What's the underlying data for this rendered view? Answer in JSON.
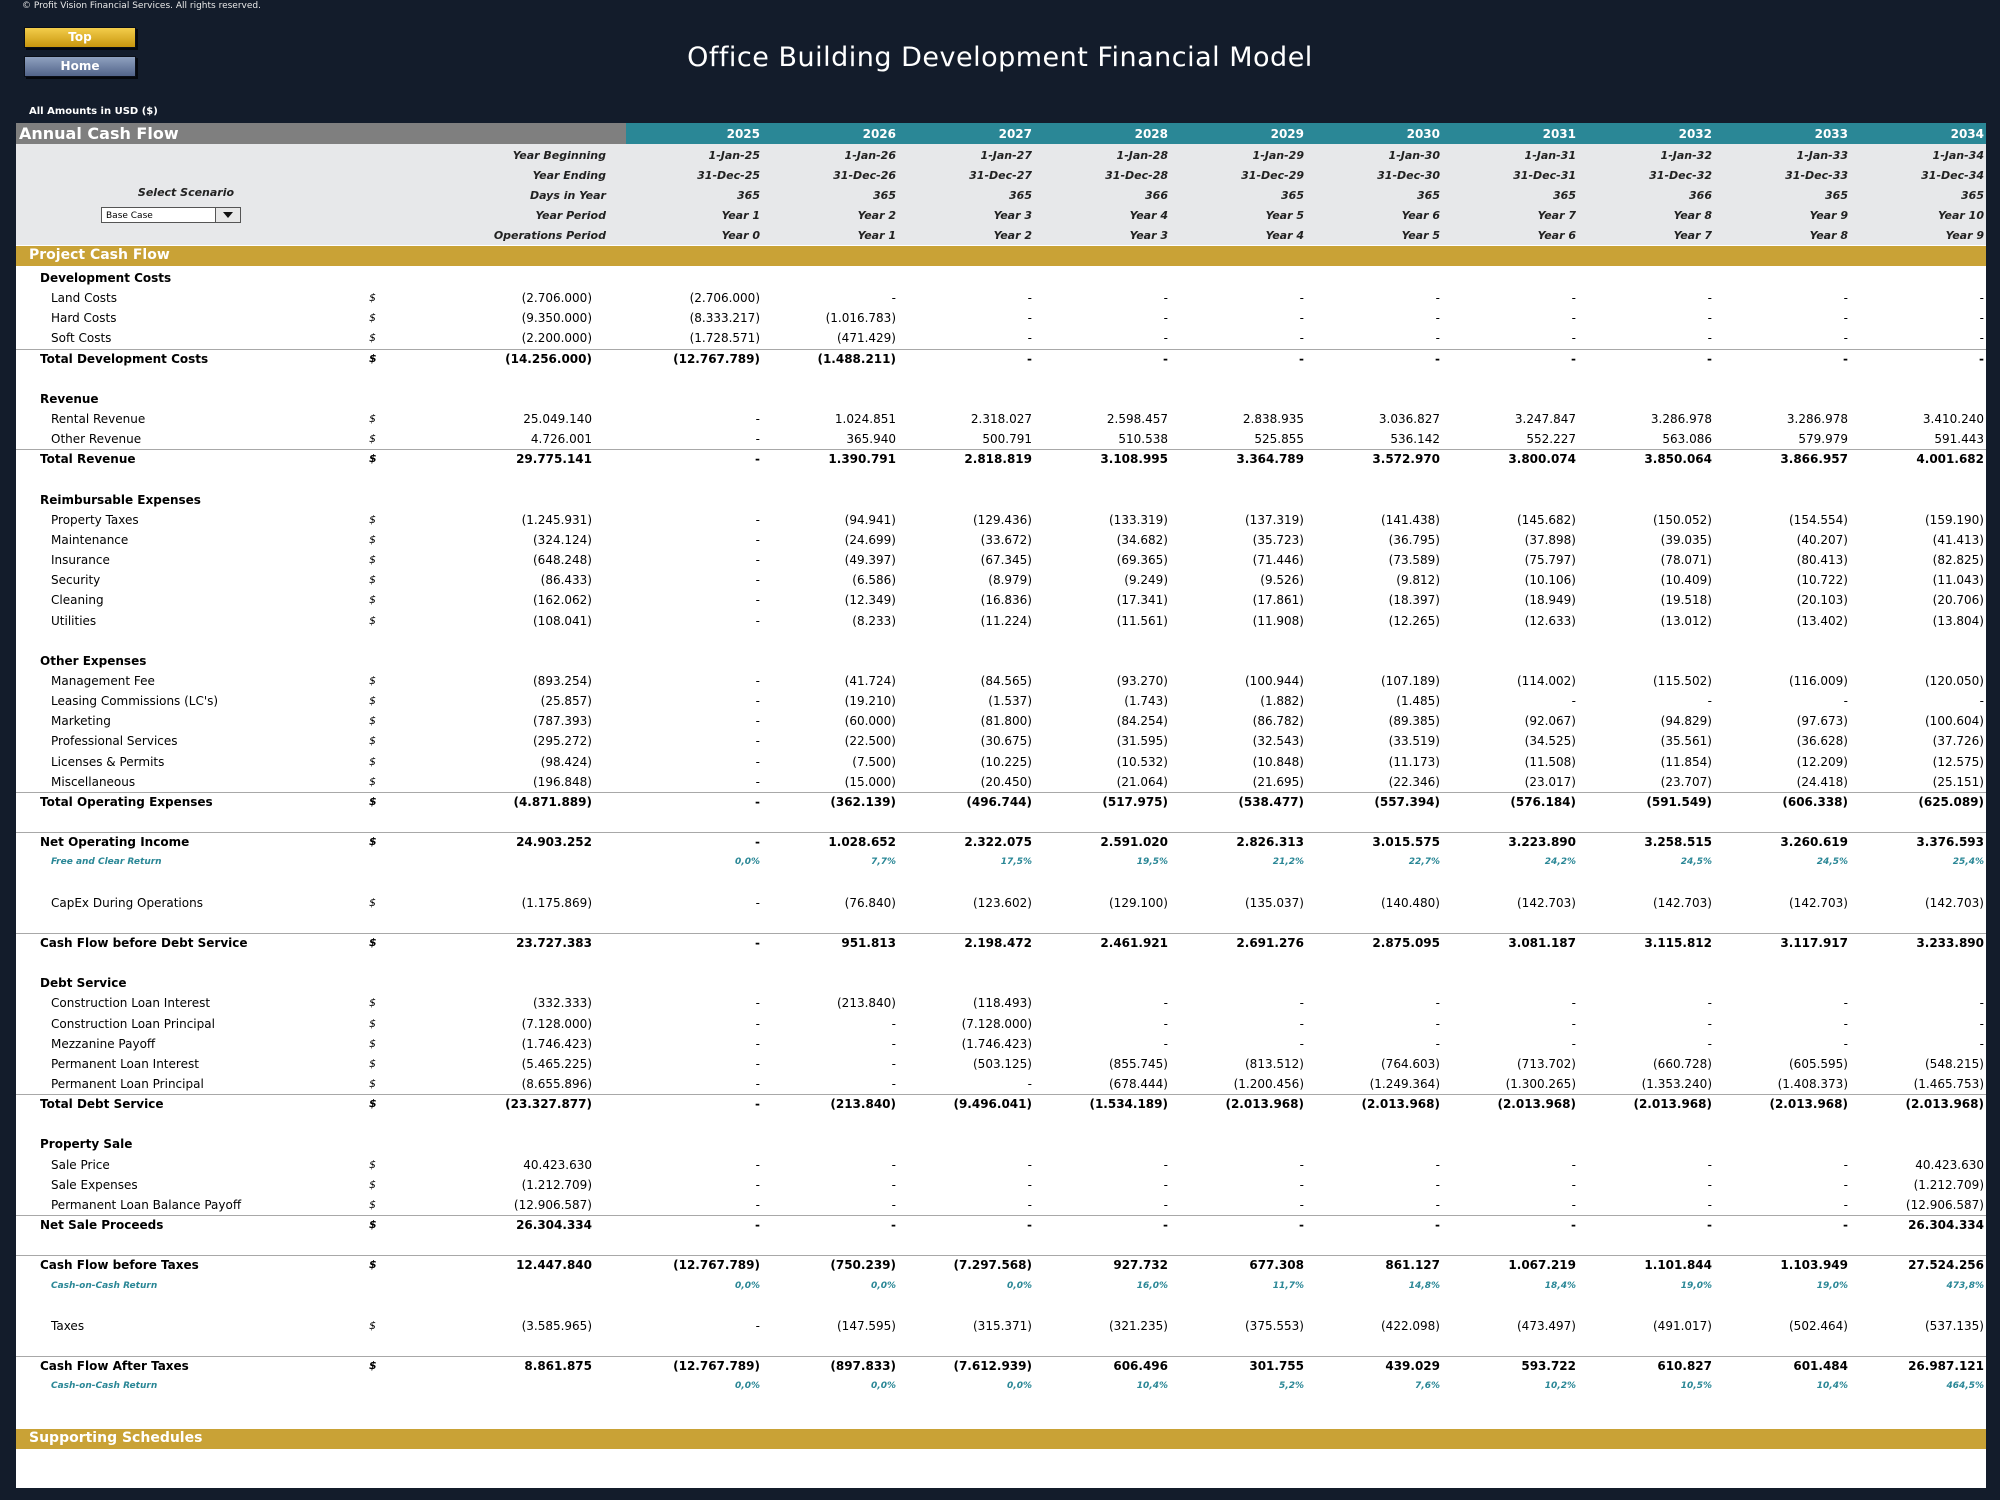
{
  "copyright": "© Profit Vision Financial Services. All rights reserved.",
  "nav": {
    "top": "Top",
    "home": "Home"
  },
  "title": "Office Building Development Financial Model",
  "amounts": "All Amounts in  USD ($)",
  "sheet_title": "Annual Cash Flow",
  "years": [
    "2025",
    "2026",
    "2027",
    "2028",
    "2029",
    "2030",
    "2031",
    "2032",
    "2033",
    "2034"
  ],
  "info_rows": [
    {
      "label": "Year Beginning",
      "values": [
        "1-Jan-25",
        "1-Jan-26",
        "1-Jan-27",
        "1-Jan-28",
        "1-Jan-29",
        "1-Jan-30",
        "1-Jan-31",
        "1-Jan-32",
        "1-Jan-33",
        "1-Jan-34"
      ]
    },
    {
      "label": "Year Ending",
      "values": [
        "31-Dec-25",
        "31-Dec-26",
        "31-Dec-27",
        "31-Dec-28",
        "31-Dec-29",
        "31-Dec-30",
        "31-Dec-31",
        "31-Dec-32",
        "31-Dec-33",
        "31-Dec-34"
      ]
    },
    {
      "label": "Days in Year",
      "values": [
        "365",
        "365",
        "365",
        "366",
        "365",
        "365",
        "365",
        "366",
        "365",
        "365"
      ]
    },
    {
      "label": "Year Period",
      "values": [
        "Year 1",
        "Year 2",
        "Year 3",
        "Year 4",
        "Year 5",
        "Year 6",
        "Year 7",
        "Year 8",
        "Year 9",
        "Year 10"
      ]
    },
    {
      "label": "Operations Period",
      "values": [
        "Year 0",
        "Year 1",
        "Year 2",
        "Year 3",
        "Year 4",
        "Year 5",
        "Year 6",
        "Year 7",
        "Year 8",
        "Year 9"
      ]
    }
  ],
  "scenario": {
    "label": "Select Scenario",
    "value": "Base Case"
  },
  "section_project": "Project Cash Flow",
  "section_supporting": "Supporting Schedules",
  "rows": [
    {
      "type": "head",
      "label": "Development Costs"
    },
    {
      "type": "item",
      "label": "Land Costs",
      "cur": "$",
      "total": "(2.706.000)",
      "values": [
        "(2.706.000)",
        "-",
        "-",
        "-",
        "-",
        "-",
        "-",
        "-",
        "-",
        "-"
      ]
    },
    {
      "type": "item",
      "label": "Hard Costs",
      "cur": "$",
      "total": "(9.350.000)",
      "values": [
        "(8.333.217)",
        "(1.016.783)",
        "-",
        "-",
        "-",
        "-",
        "-",
        "-",
        "-",
        "-"
      ]
    },
    {
      "type": "item",
      "label": "Soft Costs",
      "cur": "$",
      "total": "(2.200.000)",
      "values": [
        "(1.728.571)",
        "(471.429)",
        "-",
        "-",
        "-",
        "-",
        "-",
        "-",
        "-",
        "-"
      ]
    },
    {
      "type": "total",
      "label": "Total Development Costs",
      "cur": "$",
      "total": "(14.256.000)",
      "values": [
        "(12.767.789)",
        "(1.488.211)",
        "-",
        "-",
        "-",
        "-",
        "-",
        "-",
        "-",
        "-"
      ]
    },
    {
      "type": "blank"
    },
    {
      "type": "head",
      "label": "Revenue"
    },
    {
      "type": "item",
      "label": "Rental Revenue",
      "cur": "$",
      "total": "25.049.140",
      "values": [
        "-",
        "1.024.851",
        "2.318.027",
        "2.598.457",
        "2.838.935",
        "3.036.827",
        "3.247.847",
        "3.286.978",
        "3.286.978",
        "3.410.240"
      ]
    },
    {
      "type": "item",
      "label": "Other Revenue",
      "cur": "$",
      "total": "4.726.001",
      "values": [
        "-",
        "365.940",
        "500.791",
        "510.538",
        "525.855",
        "536.142",
        "552.227",
        "563.086",
        "579.979",
        "591.443"
      ]
    },
    {
      "type": "total",
      "label": "Total Revenue",
      "cur": "$",
      "total": "29.775.141",
      "values": [
        "-",
        "1.390.791",
        "2.818.819",
        "3.108.995",
        "3.364.789",
        "3.572.970",
        "3.800.074",
        "3.850.064",
        "3.866.957",
        "4.001.682"
      ]
    },
    {
      "type": "blank"
    },
    {
      "type": "head",
      "label": "Reimbursable Expenses"
    },
    {
      "type": "item",
      "label": "Property Taxes",
      "cur": "$",
      "total": "(1.245.931)",
      "values": [
        "-",
        "(94.941)",
        "(129.436)",
        "(133.319)",
        "(137.319)",
        "(141.438)",
        "(145.682)",
        "(150.052)",
        "(154.554)",
        "(159.190)"
      ]
    },
    {
      "type": "item",
      "label": "Maintenance",
      "cur": "$",
      "total": "(324.124)",
      "values": [
        "-",
        "(24.699)",
        "(33.672)",
        "(34.682)",
        "(35.723)",
        "(36.795)",
        "(37.898)",
        "(39.035)",
        "(40.207)",
        "(41.413)"
      ]
    },
    {
      "type": "item",
      "label": "Insurance",
      "cur": "$",
      "total": "(648.248)",
      "values": [
        "-",
        "(49.397)",
        "(67.345)",
        "(69.365)",
        "(71.446)",
        "(73.589)",
        "(75.797)",
        "(78.071)",
        "(80.413)",
        "(82.825)"
      ]
    },
    {
      "type": "item",
      "label": "Security",
      "cur": "$",
      "total": "(86.433)",
      "values": [
        "-",
        "(6.586)",
        "(8.979)",
        "(9.249)",
        "(9.526)",
        "(9.812)",
        "(10.106)",
        "(10.409)",
        "(10.722)",
        "(11.043)"
      ]
    },
    {
      "type": "item",
      "label": "Cleaning",
      "cur": "$",
      "total": "(162.062)",
      "values": [
        "-",
        "(12.349)",
        "(16.836)",
        "(17.341)",
        "(17.861)",
        "(18.397)",
        "(18.949)",
        "(19.518)",
        "(20.103)",
        "(20.706)"
      ]
    },
    {
      "type": "item",
      "label": "Utilities",
      "cur": "$",
      "total": "(108.041)",
      "values": [
        "-",
        "(8.233)",
        "(11.224)",
        "(11.561)",
        "(11.908)",
        "(12.265)",
        "(12.633)",
        "(13.012)",
        "(13.402)",
        "(13.804)"
      ]
    },
    {
      "type": "blank"
    },
    {
      "type": "head",
      "label": "Other Expenses"
    },
    {
      "type": "item",
      "label": "Management Fee",
      "cur": "$",
      "total": "(893.254)",
      "values": [
        "-",
        "(41.724)",
        "(84.565)",
        "(93.270)",
        "(100.944)",
        "(107.189)",
        "(114.002)",
        "(115.502)",
        "(116.009)",
        "(120.050)"
      ]
    },
    {
      "type": "item",
      "label": "Leasing Commissions (LC's)",
      "cur": "$",
      "total": "(25.857)",
      "values": [
        "-",
        "(19.210)",
        "(1.537)",
        "(1.743)",
        "(1.882)",
        "(1.485)",
        "-",
        "-",
        "-",
        "-"
      ]
    },
    {
      "type": "item",
      "label": "Marketing",
      "cur": "$",
      "total": "(787.393)",
      "values": [
        "-",
        "(60.000)",
        "(81.800)",
        "(84.254)",
        "(86.782)",
        "(89.385)",
        "(92.067)",
        "(94.829)",
        "(97.673)",
        "(100.604)"
      ]
    },
    {
      "type": "item",
      "label": "Professional Services",
      "cur": "$",
      "total": "(295.272)",
      "values": [
        "-",
        "(22.500)",
        "(30.675)",
        "(31.595)",
        "(32.543)",
        "(33.519)",
        "(34.525)",
        "(35.561)",
        "(36.628)",
        "(37.726)"
      ]
    },
    {
      "type": "item",
      "label": "Licenses & Permits",
      "cur": "$",
      "total": "(98.424)",
      "values": [
        "-",
        "(7.500)",
        "(10.225)",
        "(10.532)",
        "(10.848)",
        "(11.173)",
        "(11.508)",
        "(11.854)",
        "(12.209)",
        "(12.575)"
      ]
    },
    {
      "type": "item",
      "label": "Miscellaneous",
      "cur": "$",
      "total": "(196.848)",
      "values": [
        "-",
        "(15.000)",
        "(20.450)",
        "(21.064)",
        "(21.695)",
        "(22.346)",
        "(23.017)",
        "(23.707)",
        "(24.418)",
        "(25.151)"
      ]
    },
    {
      "type": "total",
      "label": "Total Operating Expenses",
      "cur": "$",
      "total": "(4.871.889)",
      "values": [
        "-",
        "(362.139)",
        "(496.744)",
        "(517.975)",
        "(538.477)",
        "(557.394)",
        "(576.184)",
        "(591.549)",
        "(606.338)",
        "(625.089)"
      ]
    },
    {
      "type": "blank"
    },
    {
      "type": "total",
      "label": "Net Operating Income",
      "cur": "$",
      "total": "24.903.252",
      "values": [
        "-",
        "1.028.652",
        "2.322.075",
        "2.591.020",
        "2.826.313",
        "3.015.575",
        "3.223.890",
        "3.258.515",
        "3.260.619",
        "3.376.593"
      ]
    },
    {
      "type": "ret",
      "label": "Free and Clear Return",
      "values": [
        "0,0%",
        "7,7%",
        "17,5%",
        "19,5%",
        "21,2%",
        "22,7%",
        "24,2%",
        "24,5%",
        "24,5%",
        "25,4%"
      ]
    },
    {
      "type": "blank"
    },
    {
      "type": "item",
      "label": "CapEx During Operations",
      "cur": "$",
      "total": "(1.175.869)",
      "values": [
        "-",
        "(76.840)",
        "(123.602)",
        "(129.100)",
        "(135.037)",
        "(140.480)",
        "(142.703)",
        "(142.703)",
        "(142.703)",
        "(142.703)"
      ]
    },
    {
      "type": "blank"
    },
    {
      "type": "total",
      "label": "Cash Flow before Debt Service",
      "cur": "$",
      "total": "23.727.383",
      "values": [
        "-",
        "951.813",
        "2.198.472",
        "2.461.921",
        "2.691.276",
        "2.875.095",
        "3.081.187",
        "3.115.812",
        "3.117.917",
        "3.233.890"
      ]
    },
    {
      "type": "blank"
    },
    {
      "type": "head",
      "label": "Debt Service"
    },
    {
      "type": "item",
      "label": "Construction Loan Interest",
      "cur": "$",
      "total": "(332.333)",
      "values": [
        "-",
        "(213.840)",
        "(118.493)",
        "-",
        "-",
        "-",
        "-",
        "-",
        "-",
        "-"
      ]
    },
    {
      "type": "item",
      "label": "Construction Loan Principal",
      "cur": "$",
      "total": "(7.128.000)",
      "values": [
        "-",
        "-",
        "(7.128.000)",
        "-",
        "-",
        "-",
        "-",
        "-",
        "-",
        "-"
      ]
    },
    {
      "type": "item",
      "label": "Mezzanine Payoff",
      "cur": "$",
      "total": "(1.746.423)",
      "values": [
        "-",
        "-",
        "(1.746.423)",
        "-",
        "-",
        "-",
        "-",
        "-",
        "-",
        "-"
      ]
    },
    {
      "type": "item",
      "label": "Permanent Loan Interest",
      "cur": "$",
      "total": "(5.465.225)",
      "values": [
        "-",
        "-",
        "(503.125)",
        "(855.745)",
        "(813.512)",
        "(764.603)",
        "(713.702)",
        "(660.728)",
        "(605.595)",
        "(548.215)"
      ]
    },
    {
      "type": "item",
      "label": "Permanent Loan Principal",
      "cur": "$",
      "total": "(8.655.896)",
      "values": [
        "-",
        "-",
        "-",
        "(678.444)",
        "(1.200.456)",
        "(1.249.364)",
        "(1.300.265)",
        "(1.353.240)",
        "(1.408.373)",
        "(1.465.753)"
      ]
    },
    {
      "type": "total",
      "label": "Total Debt Service",
      "cur": "$",
      "total": "(23.327.877)",
      "values": [
        "-",
        "(213.840)",
        "(9.496.041)",
        "(1.534.189)",
        "(2.013.968)",
        "(2.013.968)",
        "(2.013.968)",
        "(2.013.968)",
        "(2.013.968)",
        "(2.013.968)"
      ]
    },
    {
      "type": "blank"
    },
    {
      "type": "head",
      "label": "Property Sale"
    },
    {
      "type": "item",
      "label": "Sale Price",
      "cur": "$",
      "total": "40.423.630",
      "values": [
        "-",
        "-",
        "-",
        "-",
        "-",
        "-",
        "-",
        "-",
        "-",
        "40.423.630"
      ]
    },
    {
      "type": "item",
      "label": "Sale Expenses",
      "cur": "$",
      "total": "(1.212.709)",
      "values": [
        "-",
        "-",
        "-",
        "-",
        "-",
        "-",
        "-",
        "-",
        "-",
        "(1.212.709)"
      ]
    },
    {
      "type": "item",
      "label": "Permanent Loan Balance Payoff",
      "cur": "$",
      "total": "(12.906.587)",
      "values": [
        "-",
        "-",
        "-",
        "-",
        "-",
        "-",
        "-",
        "-",
        "-",
        "(12.906.587)"
      ]
    },
    {
      "type": "total",
      "label": "Net Sale Proceeds",
      "cur": "$",
      "total": "26.304.334",
      "values": [
        "-",
        "-",
        "-",
        "-",
        "-",
        "-",
        "-",
        "-",
        "-",
        "26.304.334"
      ]
    },
    {
      "type": "blank"
    },
    {
      "type": "total",
      "label": "Cash Flow before Taxes",
      "cur": "$",
      "total": "12.447.840",
      "values": [
        "(12.767.789)",
        "(750.239)",
        "(7.297.568)",
        "927.732",
        "677.308",
        "861.127",
        "1.067.219",
        "1.101.844",
        "1.103.949",
        "27.524.256"
      ]
    },
    {
      "type": "ret",
      "label": "Cash-on-Cash Return",
      "values": [
        "0,0%",
        "0,0%",
        "0,0%",
        "16,0%",
        "11,7%",
        "14,8%",
        "18,4%",
        "19,0%",
        "19,0%",
        "473,8%"
      ]
    },
    {
      "type": "blank"
    },
    {
      "type": "item",
      "label": "Taxes",
      "cur": "$",
      "total": "(3.585.965)",
      "values": [
        "-",
        "(147.595)",
        "(315.371)",
        "(321.235)",
        "(375.553)",
        "(422.098)",
        "(473.497)",
        "(491.017)",
        "(502.464)",
        "(537.135)"
      ]
    },
    {
      "type": "blank"
    },
    {
      "type": "total",
      "label": "Cash Flow After Taxes",
      "cur": "$",
      "total": "8.861.875",
      "values": [
        "(12.767.789)",
        "(897.833)",
        "(7.612.939)",
        "606.496",
        "301.755",
        "439.029",
        "593.722",
        "610.827",
        "601.484",
        "26.987.121"
      ]
    },
    {
      "type": "ret",
      "label": "Cash-on-Cash Return",
      "values": [
        "0,0%",
        "0,0%",
        "0,0%",
        "10,4%",
        "5,2%",
        "7,6%",
        "10,2%",
        "10,5%",
        "10,4%",
        "464,5%"
      ]
    }
  ]
}
